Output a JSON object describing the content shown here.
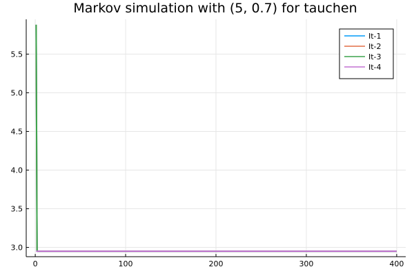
{
  "chart_data": {
    "type": "line",
    "title": "Markov simulation with (5, 0.7) for tauchen",
    "xlabel": "",
    "ylabel": "",
    "xlim": [
      -10,
      410
    ],
    "ylim": [
      2.88,
      5.95
    ],
    "x_ticks": [
      0,
      100,
      200,
      300,
      400
    ],
    "x_tick_labels": [
      "0",
      "100",
      "200",
      "300",
      "400"
    ],
    "y_ticks": [
      3.0,
      3.5,
      4.0,
      4.5,
      5.0,
      5.5
    ],
    "y_tick_labels": [
      "3.0",
      "3.5",
      "4.0",
      "4.5",
      "5.0",
      "5.5"
    ],
    "grid": true,
    "legend_position": "top-right",
    "series": [
      {
        "name": "It-1",
        "color": "#009af9",
        "x": [
          1,
          2,
          400
        ],
        "y": [
          5.88,
          2.95,
          2.95
        ]
      },
      {
        "name": "It-2",
        "color": "#e26f46",
        "x": [
          1,
          2,
          400
        ],
        "y": [
          5.88,
          2.95,
          2.95
        ]
      },
      {
        "name": "It-3",
        "color": "#3da44d",
        "x": [
          1,
          2,
          400
        ],
        "y": [
          5.88,
          2.95,
          2.95
        ]
      },
      {
        "name": "It-4",
        "color": "#c271d2",
        "x": [
          1,
          2,
          400
        ],
        "y": [
          2.95,
          2.95,
          2.95
        ]
      }
    ]
  }
}
